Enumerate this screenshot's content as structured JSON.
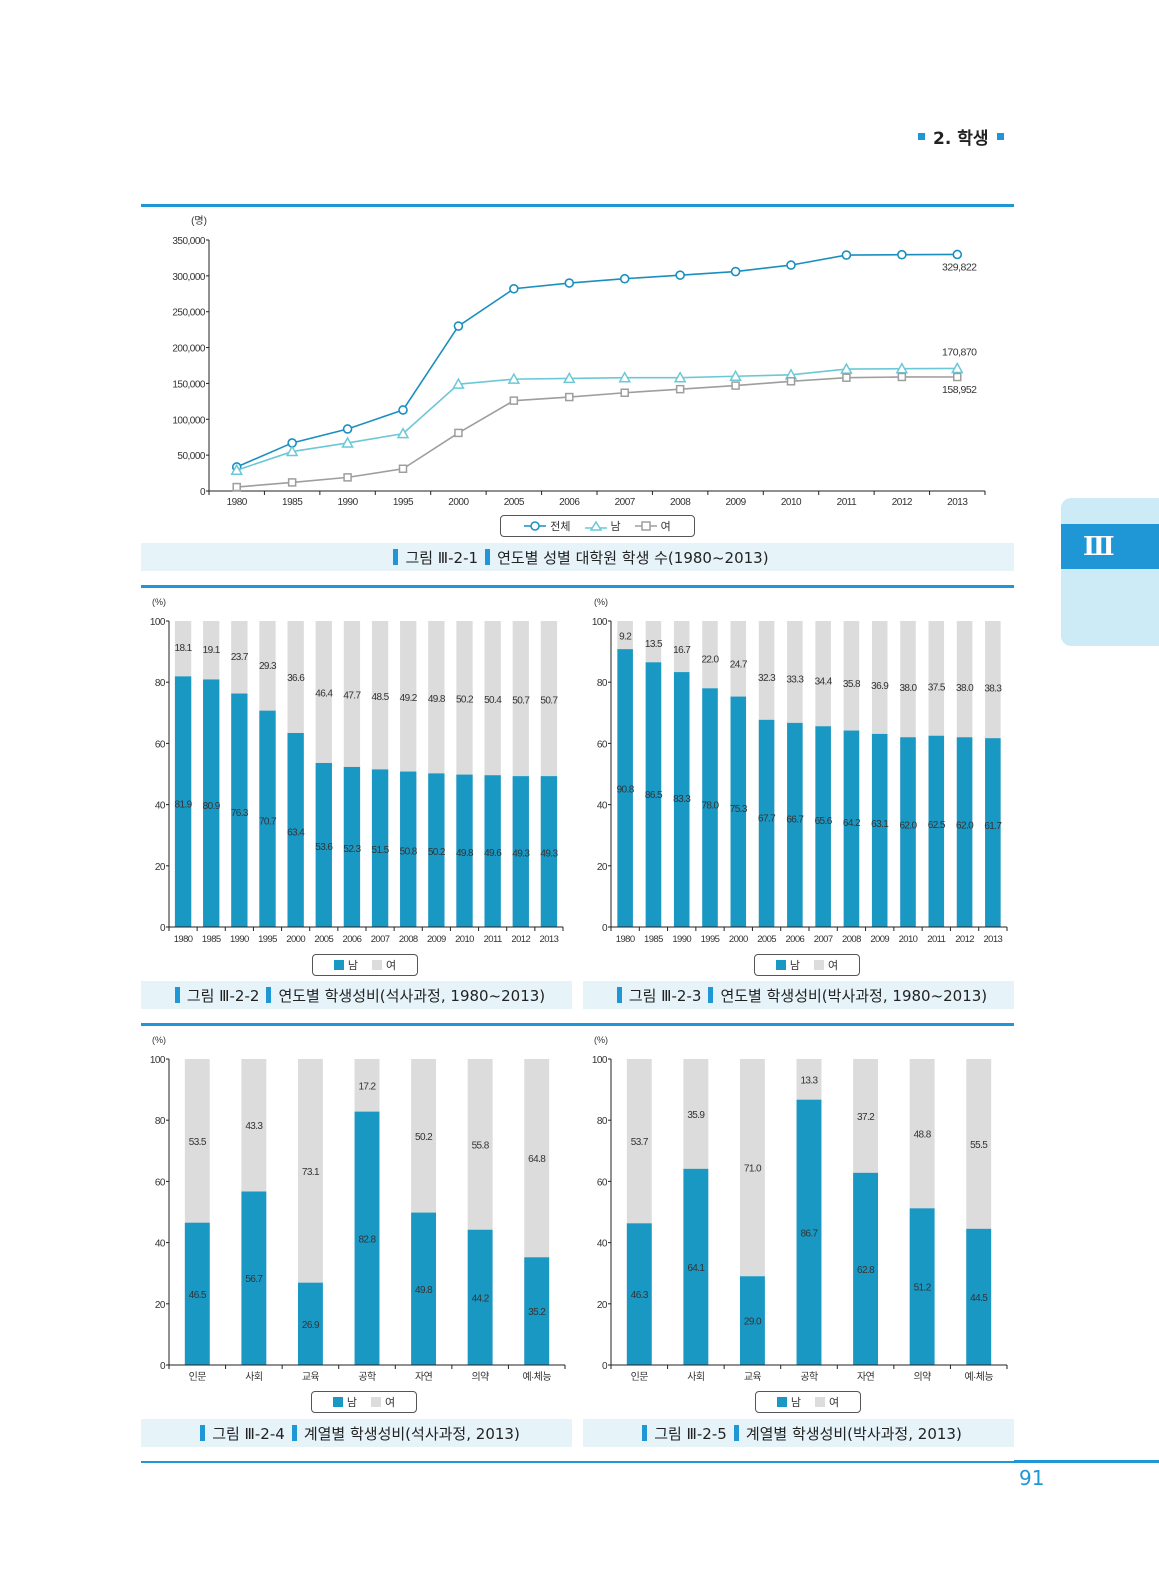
{
  "header": {
    "section_title": "2. 학생"
  },
  "chapter_tab": {
    "label": "Ⅲ"
  },
  "page_number": "91",
  "colors": {
    "accent": "#1f97d6",
    "male_bar": "#1a98c4",
    "female_bar": "#dcdcdc",
    "total_line": "#1a8fbf",
    "male_line": "#6cc8d6",
    "female_line": "#9e9e9e",
    "caption_bg": "#e6f4fa"
  },
  "chart_data": [
    {
      "id": "fig-2-1",
      "type": "line",
      "caption_prefix": "그림 Ⅲ-2-1",
      "title": "연도별 성별 대학원 학생 수(1980~2013)",
      "ylabel": "(명)",
      "xlabel": "",
      "ylim": [
        0,
        350000
      ],
      "yticks": [
        0,
        50000,
        100000,
        150000,
        200000,
        250000,
        300000,
        350000
      ],
      "ytick_labels": [
        "0",
        "50,000",
        "100,000",
        "150,000",
        "200,000",
        "250,000",
        "300,000",
        "350,000"
      ],
      "x": [
        "1980",
        "1985",
        "1990",
        "1995",
        "2000",
        "2005",
        "2006",
        "2007",
        "2008",
        "2009",
        "2010",
        "2011",
        "2012",
        "2013"
      ],
      "series": [
        {
          "name": "전체",
          "marker": "circle",
          "values": [
            33500,
            67000,
            86500,
            113000,
            230000,
            282000,
            290000,
            296000,
            301000,
            306000,
            315000,
            329000,
            329500,
            329822
          ]
        },
        {
          "name": "남",
          "marker": "triangle",
          "values": [
            29000,
            55000,
            67000,
            80000,
            149000,
            156000,
            157000,
            158000,
            158000,
            160000,
            162000,
            170000,
            170500,
            170870
          ]
        },
        {
          "name": "여",
          "marker": "square",
          "values": [
            5500,
            12000,
            19000,
            31000,
            81000,
            126000,
            131000,
            137000,
            142000,
            147000,
            153000,
            158000,
            159000,
            158952
          ]
        }
      ],
      "annotations": [
        {
          "series": "전체",
          "x": "2013",
          "text": "329,822"
        },
        {
          "series": "남",
          "x": "2013",
          "text": "170,870"
        },
        {
          "series": "여",
          "x": "2013",
          "text": "158,952"
        }
      ],
      "legend": {
        "placement": "bottom",
        "labels": [
          "전체",
          "남",
          "여"
        ]
      },
      "grid": false
    },
    {
      "id": "fig-2-2",
      "type": "bar",
      "stacked": true,
      "caption_prefix": "그림 Ⅲ-2-2",
      "title": "연도별 학생성비(석사과정, 1980~2013)",
      "ylabel": "(%)",
      "ylim": [
        0,
        100
      ],
      "yticks": [
        0,
        20,
        40,
        60,
        80,
        100
      ],
      "categories": [
        "1980",
        "1985",
        "1990",
        "1995",
        "2000",
        "2005",
        "2006",
        "2007",
        "2008",
        "2009",
        "2010",
        "2011",
        "2012",
        "2013"
      ],
      "series": [
        {
          "name": "남",
          "values": [
            81.9,
            80.9,
            76.3,
            70.7,
            63.4,
            53.6,
            52.3,
            51.5,
            50.8,
            50.2,
            49.8,
            49.6,
            49.3,
            49.3
          ]
        },
        {
          "name": "여",
          "values": [
            18.1,
            19.1,
            23.7,
            29.3,
            36.6,
            46.4,
            47.7,
            48.5,
            49.2,
            49.8,
            50.2,
            50.4,
            50.7,
            50.7
          ]
        }
      ],
      "legend": {
        "placement": "bottom",
        "labels": [
          "남",
          "여"
        ]
      },
      "grid": false
    },
    {
      "id": "fig-2-3",
      "type": "bar",
      "stacked": true,
      "caption_prefix": "그림 Ⅲ-2-3",
      "title": "연도별 학생성비(박사과정, 1980~2013)",
      "ylabel": "(%)",
      "ylim": [
        0,
        100
      ],
      "yticks": [
        0,
        20,
        40,
        60,
        80,
        100
      ],
      "categories": [
        "1980",
        "1985",
        "1990",
        "1995",
        "2000",
        "2005",
        "2006",
        "2007",
        "2008",
        "2009",
        "2010",
        "2011",
        "2012",
        "2013"
      ],
      "series": [
        {
          "name": "남",
          "values": [
            90.8,
            86.5,
            83.3,
            78.0,
            75.3,
            67.7,
            66.7,
            65.6,
            64.2,
            63.1,
            62.0,
            62.5,
            62.0,
            61.7
          ]
        },
        {
          "name": "여",
          "values": [
            9.2,
            13.5,
            16.7,
            22.0,
            24.7,
            32.3,
            33.3,
            34.4,
            35.8,
            36.9,
            38.0,
            37.5,
            38.0,
            38.3
          ]
        }
      ],
      "legend": {
        "placement": "bottom",
        "labels": [
          "남",
          "여"
        ]
      },
      "grid": false
    },
    {
      "id": "fig-2-4",
      "type": "bar",
      "stacked": true,
      "caption_prefix": "그림 Ⅲ-2-4",
      "title": "계열별 학생성비(석사과정, 2013)",
      "ylabel": "(%)",
      "ylim": [
        0,
        100
      ],
      "yticks": [
        0,
        20,
        40,
        60,
        80,
        100
      ],
      "categories": [
        "인문",
        "사회",
        "교육",
        "공학",
        "자연",
        "의약",
        "예·체능"
      ],
      "series": [
        {
          "name": "남",
          "values": [
            46.5,
            56.7,
            26.9,
            82.8,
            49.8,
            44.2,
            35.2
          ]
        },
        {
          "name": "여",
          "values": [
            53.5,
            43.3,
            73.1,
            17.2,
            50.2,
            55.8,
            64.8
          ]
        }
      ],
      "legend": {
        "placement": "bottom",
        "labels": [
          "남",
          "여"
        ]
      },
      "grid": false
    },
    {
      "id": "fig-2-5",
      "type": "bar",
      "stacked": true,
      "caption_prefix": "그림 Ⅲ-2-5",
      "title": "계열별 학생성비(박사과정, 2013)",
      "ylabel": "(%)",
      "ylim": [
        0,
        100
      ],
      "yticks": [
        0,
        20,
        40,
        60,
        80,
        100
      ],
      "categories": [
        "인문",
        "사회",
        "교육",
        "공학",
        "자연",
        "의약",
        "예·체능"
      ],
      "series": [
        {
          "name": "남",
          "values": [
            46.3,
            64.1,
            29.0,
            86.7,
            62.8,
            51.2,
            44.5
          ]
        },
        {
          "name": "여",
          "values": [
            53.7,
            35.9,
            71.0,
            13.3,
            37.2,
            48.8,
            55.5
          ]
        }
      ],
      "legend": {
        "placement": "bottom",
        "labels": [
          "남",
          "여"
        ]
      },
      "grid": false
    }
  ]
}
